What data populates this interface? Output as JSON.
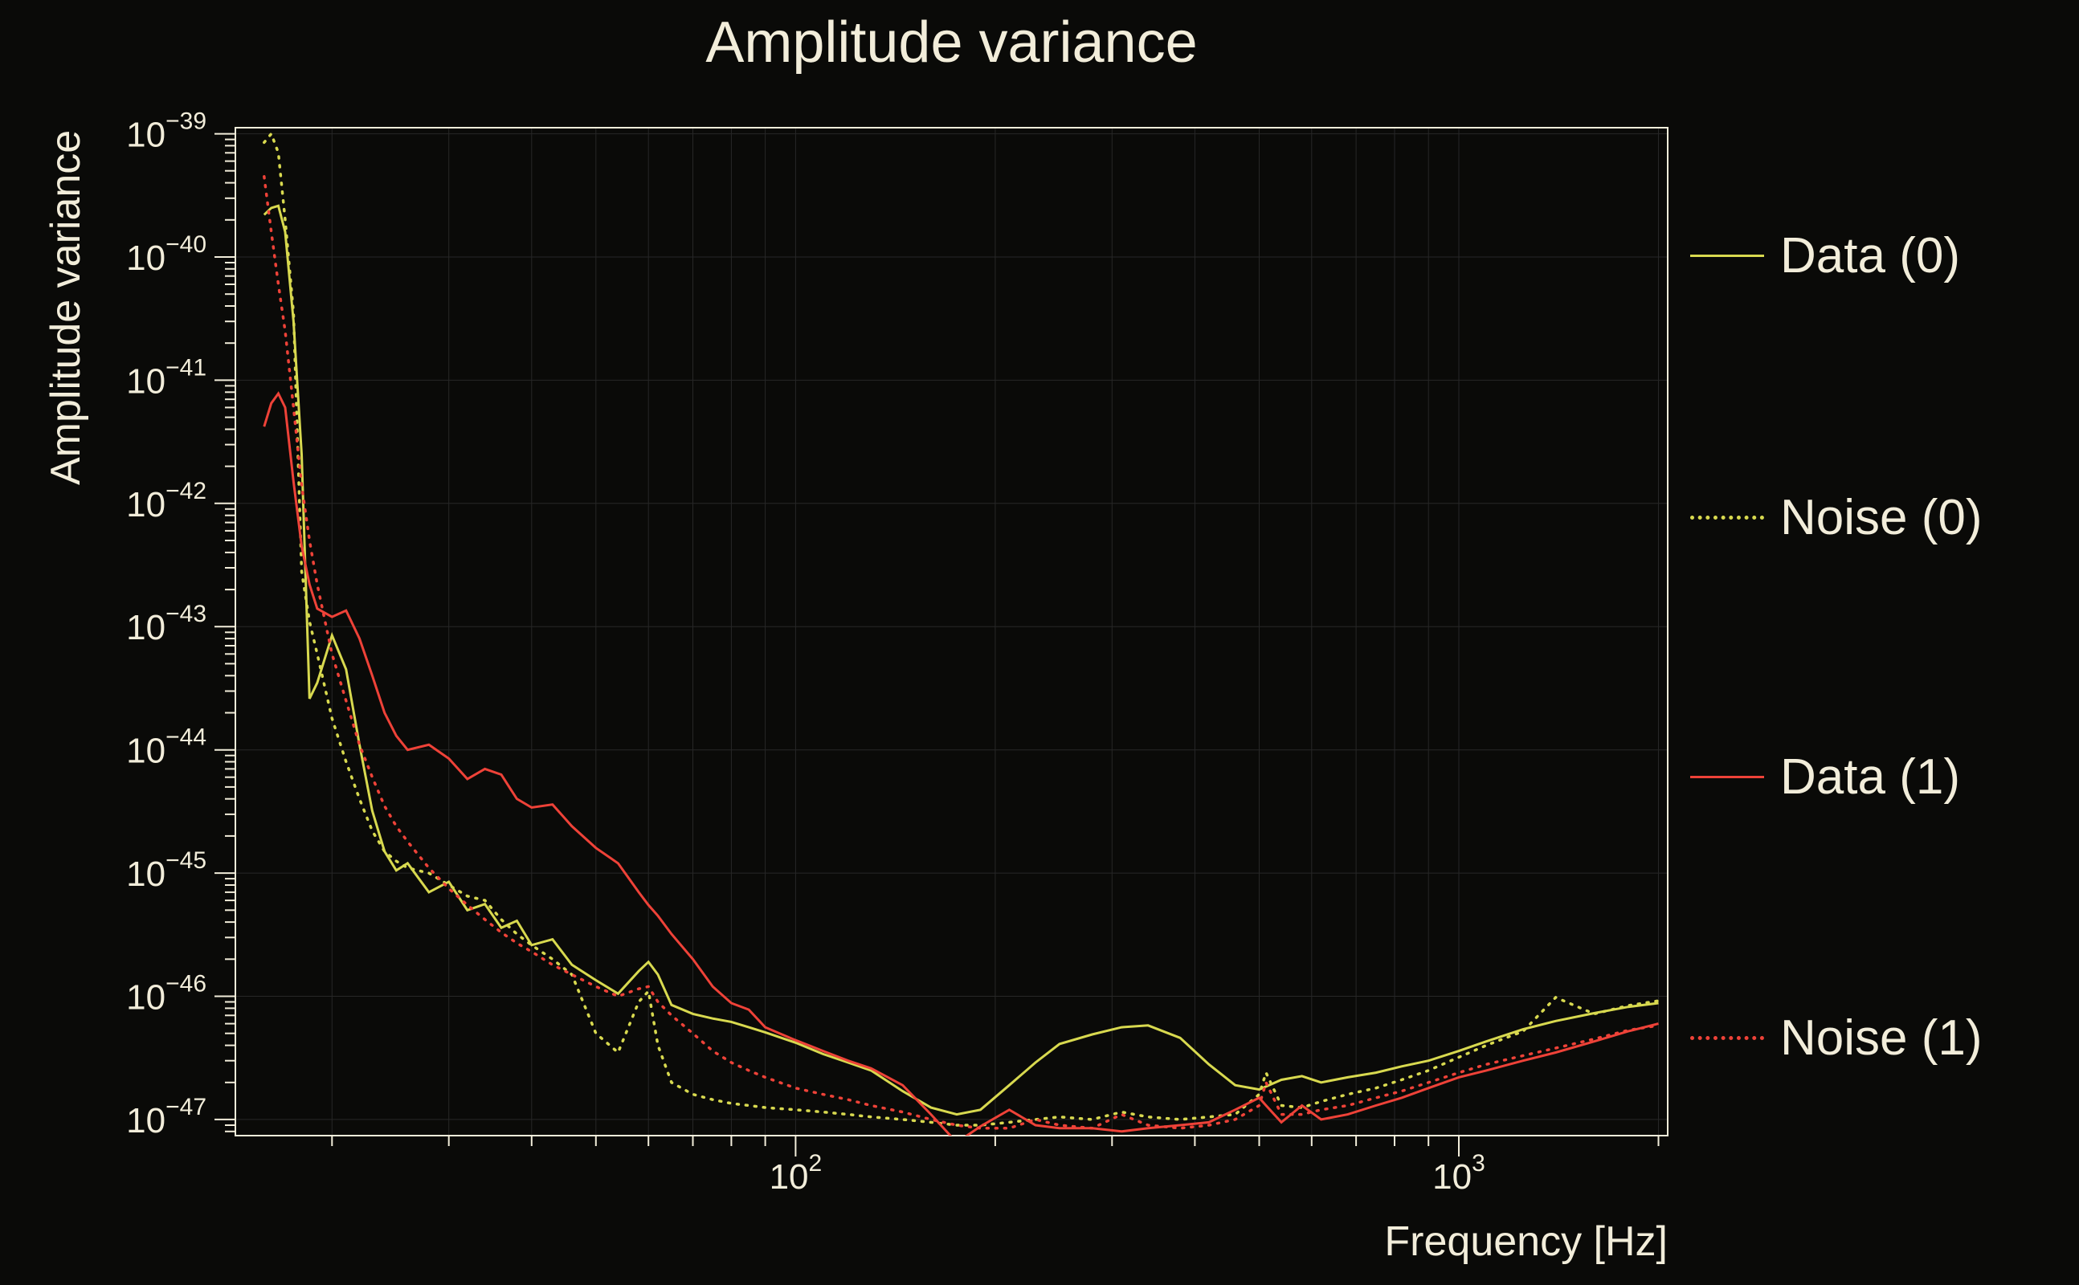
{
  "title": "Amplitude variance",
  "colors": {
    "background": "#0a0a08",
    "foreground": "#f2edda",
    "grid": "#272727",
    "series_yellow": "#d8d94f",
    "series_red": "#ee4238"
  },
  "axes": {
    "y_ticks": [
      {
        "value": 1e-39,
        "base": "10",
        "exp": "−39"
      },
      {
        "value": 1e-40,
        "base": "10",
        "exp": "−40"
      },
      {
        "value": 1e-41,
        "base": "10",
        "exp": "−41"
      },
      {
        "value": 1e-42,
        "base": "10",
        "exp": "−42"
      },
      {
        "value": 1e-43,
        "base": "10",
        "exp": "−43"
      },
      {
        "value": 1e-44,
        "base": "10",
        "exp": "−44"
      },
      {
        "value": 1e-45,
        "base": "10",
        "exp": "−45"
      },
      {
        "value": 1e-46,
        "base": "10",
        "exp": "−46"
      },
      {
        "value": 1e-47,
        "base": "10",
        "exp": "−47"
      }
    ],
    "x_ticks": [
      {
        "value": 100,
        "base": "10",
        "exp": "2"
      },
      {
        "value": 1000,
        "base": "10",
        "exp": "3"
      }
    ]
  },
  "chart_data": {
    "type": "line",
    "title": "Amplitude variance",
    "xlabel": "Frequency [Hz]",
    "ylabel": "Amplitude variance",
    "x_scale": "log",
    "y_scale": "log",
    "grid": true,
    "legend_position": "right-outside",
    "xlim": [
      14.3,
      2065
    ],
    "ylim": [
      7.4e-48,
      1.12e-39
    ],
    "x": [
      15.8,
      16.2,
      16.6,
      17,
      17.5,
      18,
      18.5,
      19,
      20,
      21,
      22,
      23,
      24,
      25,
      26,
      28,
      30,
      32,
      34,
      36,
      38,
      40,
      43,
      46,
      50,
      54,
      58,
      60,
      62,
      65,
      70,
      75,
      80,
      85,
      90,
      100,
      110,
      120,
      130,
      145,
      160,
      175,
      190,
      210,
      230,
      250,
      280,
      310,
      340,
      380,
      420,
      460,
      500,
      512,
      540,
      580,
      620,
      680,
      750,
      820,
      900,
      1000,
      1100,
      1250,
      1400,
      1600,
      1800,
      2000
    ],
    "series": [
      {
        "name": "Data (0)",
        "color": "#d8d94f",
        "style": "solid",
        "values": [
          2.2e-40,
          2.5e-40,
          2.6e-40,
          1.6e-40,
          3e-41,
          2.5e-42,
          2.6e-44,
          3.5e-44,
          8.5e-44,
          4.5e-44,
          1.1e-44,
          3.2e-45,
          1.5e-45,
          1.05e-45,
          1.2e-45,
          7e-46,
          8.5e-46,
          5e-46,
          5.6e-46,
          3.6e-46,
          4.1e-46,
          2.6e-46,
          2.9e-46,
          1.8e-46,
          1.35e-46,
          1.05e-46,
          1.6e-46,
          1.9e-46,
          1.5e-46,
          8.5e-47,
          7.2e-47,
          6.6e-47,
          6.2e-47,
          5.6e-47,
          5.1e-47,
          4.2e-47,
          3.4e-47,
          2.9e-47,
          2.5e-47,
          1.7e-47,
          1.25e-47,
          1.1e-47,
          1.2e-47,
          1.9e-47,
          2.9e-47,
          4.1e-47,
          4.9e-47,
          5.6e-47,
          5.8e-47,
          4.6e-47,
          2.8e-47,
          1.9e-47,
          1.75e-47,
          1.85e-47,
          2.1e-47,
          2.25e-47,
          2e-47,
          2.2e-47,
          2.4e-47,
          2.7e-47,
          3e-47,
          3.6e-47,
          4.3e-47,
          5.4e-47,
          6.3e-47,
          7.3e-47,
          8.2e-47,
          8.8e-47
        ]
      },
      {
        "name": "Noise (0)",
        "color": "#d8d94f",
        "style": "dotted",
        "values": [
          8.5e-40,
          1e-39,
          7e-40,
          2e-40,
          3.5e-41,
          2.8e-43,
          1.1e-43,
          6e-44,
          1.8e-44,
          8e-45,
          4e-45,
          2.2e-45,
          1.5e-45,
          1.25e-45,
          1.1e-45,
          1e-45,
          8e-46,
          6.5e-46,
          6e-46,
          4.2e-46,
          3.2e-46,
          2.6e-46,
          2e-46,
          1.5e-46,
          5e-47,
          3.5e-47,
          9e-47,
          1.1e-46,
          4e-47,
          2e-47,
          1.6e-47,
          1.45e-47,
          1.35e-47,
          1.3e-47,
          1.25e-47,
          1.2e-47,
          1.15e-47,
          1.1e-47,
          1.05e-47,
          1e-47,
          9.5e-48,
          9e-48,
          9e-48,
          9.5e-48,
          1e-47,
          1.05e-47,
          1e-47,
          1.15e-47,
          1.05e-47,
          1e-47,
          1.05e-47,
          1.1e-47,
          1.6e-47,
          2.4e-47,
          1.3e-47,
          1.25e-47,
          1.4e-47,
          1.6e-47,
          1.8e-47,
          2.1e-47,
          2.5e-47,
          3.2e-47,
          4e-47,
          5.2e-47,
          9.8e-47,
          7.2e-47,
          8.4e-47,
          9.2e-47
        ]
      },
      {
        "name": "Data (1)",
        "color": "#ee4238",
        "style": "solid",
        "values": [
          4.2e-42,
          6.5e-42,
          7.8e-42,
          6e-42,
          1.5e-42,
          4.5e-43,
          2.2e-43,
          1.4e-43,
          1.2e-43,
          1.35e-43,
          8e-44,
          4e-44,
          2e-44,
          1.3e-44,
          1e-44,
          1.1e-44,
          8.5e-45,
          5.8e-45,
          7e-45,
          6.3e-45,
          4e-45,
          3.4e-45,
          3.6e-45,
          2.4e-45,
          1.6e-45,
          1.2e-45,
          7e-46,
          5.5e-46,
          4.5e-46,
          3.2e-46,
          2e-46,
          1.2e-46,
          8.8e-47,
          7.8e-47,
          5.6e-47,
          4.4e-47,
          3.6e-47,
          3e-47,
          2.6e-47,
          1.9e-47,
          1.1e-47,
          6.5e-48,
          8.8e-48,
          1.2e-47,
          9e-48,
          8.5e-48,
          8.5e-48,
          8e-48,
          8.5e-48,
          9e-48,
          9.5e-48,
          1.2e-47,
          1.5e-47,
          1.3e-47,
          9.5e-48,
          1.3e-47,
          1e-47,
          1.1e-47,
          1.3e-47,
          1.5e-47,
          1.8e-47,
          2.2e-47,
          2.5e-47,
          3e-47,
          3.5e-47,
          4.3e-47,
          5.2e-47,
          6e-47
        ]
      },
      {
        "name": "Noise (1)",
        "color": "#ee4238",
        "style": "dotted",
        "values": [
          4.5e-40,
          1.6e-40,
          6e-41,
          2.5e-41,
          6e-42,
          1.4e-42,
          5e-43,
          2.2e-43,
          6e-44,
          2.5e-44,
          1.1e-44,
          6e-45,
          3.5e-45,
          2.4e-45,
          1.8e-45,
          1.1e-45,
          7.5e-46,
          5.5e-46,
          4.2e-46,
          3.3e-46,
          2.7e-46,
          2.3e-46,
          1.8e-46,
          1.5e-46,
          1.2e-46,
          1e-46,
          1.15e-46,
          1.2e-46,
          9e-47,
          7e-47,
          5e-47,
          3.6e-47,
          2.9e-47,
          2.5e-47,
          2.2e-47,
          1.8e-47,
          1.6e-47,
          1.45e-47,
          1.3e-47,
          1.15e-47,
          1e-47,
          9e-48,
          8.5e-48,
          8.5e-48,
          1e-47,
          9e-48,
          8.5e-48,
          1.1e-47,
          9e-48,
          8.5e-48,
          9e-48,
          1e-47,
          1.3e-47,
          2e-47,
          1.1e-47,
          1.1e-47,
          1.2e-47,
          1.3e-47,
          1.5e-47,
          1.7e-47,
          2e-47,
          2.4e-47,
          2.8e-47,
          3.3e-47,
          3.8e-47,
          4.5e-47,
          5.3e-47,
          5.8e-47
        ]
      }
    ]
  }
}
